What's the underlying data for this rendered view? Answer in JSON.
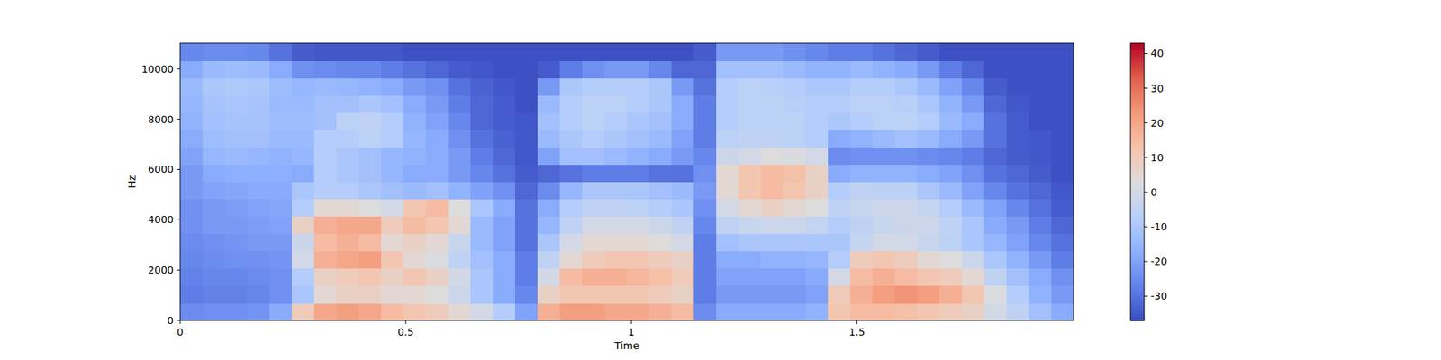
{
  "chart_data": {
    "type": "heatmap",
    "x_label": "Time",
    "y_label": "Hz",
    "xlim": [
      0,
      1.98
    ],
    "ylim": [
      0,
      11025
    ],
    "xticks": [
      0,
      0.5,
      1,
      1.5
    ],
    "yticks": [
      0,
      2000,
      4000,
      6000,
      8000,
      10000
    ],
    "values": [
      [
        -25,
        -28,
        -27,
        -26,
        -25,
        -24,
        -24,
        -22,
        -22,
        -20,
        -18,
        -16,
        -15,
        -14,
        -18,
        -26
      ],
      [
        -24,
        -27,
        -26,
        -25,
        -24,
        -22,
        -22,
        -20,
        -18,
        -15,
        -13,
        -12,
        -11,
        -10,
        -14,
        -25
      ],
      [
        -24,
        -27,
        -26,
        -24,
        -23,
        -22,
        -21,
        -19,
        -17,
        -14,
        -12,
        -11,
        -10,
        -9,
        -13,
        -25
      ],
      [
        -23,
        -26,
        -25,
        -24,
        -22,
        -21,
        -20,
        -18,
        -17,
        -15,
        -12,
        -11,
        -11,
        -10,
        -14,
        -26
      ],
      [
        -18,
        -24,
        -24,
        -23,
        -22,
        -20,
        -19,
        -18,
        -17,
        -16,
        -14,
        -13,
        -14,
        -13,
        -18,
        -30
      ],
      [
        10,
        -10,
        -8,
        0,
        -2,
        8,
        -8,
        -10,
        -18,
        -15,
        -14,
        -13,
        -14,
        -15,
        -24,
        -34
      ],
      [
        20,
        5,
        8,
        18,
        15,
        18,
        5,
        -8,
        -8,
        -8,
        -8,
        -12,
        -12,
        -14,
        -25,
        -35
      ],
      [
        22,
        8,
        10,
        20,
        18,
        20,
        5,
        -8,
        -10,
        -10,
        -8,
        -6,
        -12,
        -15,
        -26,
        -35
      ],
      [
        20,
        8,
        12,
        22,
        15,
        20,
        3,
        -10,
        -12,
        -12,
        -6,
        -5,
        -10,
        -16,
        -26,
        -35
      ],
      [
        15,
        5,
        8,
        12,
        5,
        10,
        0,
        -12,
        -15,
        -15,
        -8,
        -8,
        -12,
        -18,
        -28,
        -35
      ],
      [
        12,
        5,
        12,
        5,
        8,
        15,
        12,
        -14,
        -18,
        -16,
        -15,
        -16,
        -18,
        -22,
        -30,
        -36
      ],
      [
        10,
        3,
        8,
        2,
        5,
        12,
        15,
        -12,
        -18,
        -18,
        -18,
        -20,
        -22,
        -24,
        -32,
        -36
      ],
      [
        5,
        -2,
        0,
        -5,
        -3,
        5,
        3,
        -16,
        -22,
        -22,
        -24,
        -26,
        -28,
        -30,
        -34,
        -36
      ],
      [
        0,
        -10,
        -10,
        -12,
        -14,
        -14,
        -10,
        -20,
        -26,
        -28,
        -30,
        -32,
        -32,
        -33,
        -35,
        -36
      ],
      [
        -8,
        -18,
        -18,
        -18,
        -20,
        -20,
        -18,
        -24,
        -30,
        -32,
        -33,
        -34,
        -34,
        -35,
        -36,
        -36
      ],
      [
        -20,
        -26,
        -28,
        -28,
        -30,
        -30,
        -30,
        -32,
        -34,
        -35,
        -35,
        -35,
        -36,
        -36,
        -36,
        -36
      ],
      [
        18,
        8,
        0,
        -5,
        -10,
        -15,
        -18,
        -25,
        -32,
        -20,
        -14,
        -12,
        -14,
        -22,
        -34,
        -36
      ],
      [
        22,
        12,
        15,
        5,
        0,
        -5,
        -8,
        -15,
        -30,
        -12,
        -10,
        -8,
        -8,
        -10,
        -28,
        -36
      ],
      [
        22,
        12,
        18,
        10,
        5,
        0,
        -5,
        -10,
        -28,
        -12,
        -8,
        -6,
        -6,
        -8,
        -24,
        -36
      ],
      [
        20,
        12,
        18,
        12,
        5,
        0,
        -5,
        -10,
        -28,
        -14,
        -10,
        -8,
        -6,
        -8,
        -22,
        -36
      ],
      [
        20,
        12,
        16,
        12,
        5,
        0,
        -6,
        -10,
        -28,
        -16,
        -12,
        -10,
        -8,
        -8,
        -22,
        -36
      ],
      [
        18,
        10,
        14,
        10,
        3,
        -2,
        -8,
        -12,
        -30,
        -18,
        -14,
        -12,
        -10,
        -10,
        -26,
        -36
      ],
      [
        15,
        8,
        10,
        8,
        0,
        -5,
        -10,
        -14,
        -30,
        -22,
        -20,
        -18,
        -18,
        -22,
        -32,
        -36
      ],
      [
        -25,
        -28,
        -28,
        -28,
        -28,
        -26,
        -24,
        -22,
        -24,
        -26,
        -28,
        -28,
        -28,
        -30,
        -32,
        -34
      ],
      [
        -18,
        -22,
        -20,
        -18,
        -12,
        -5,
        0,
        5,
        5,
        -2,
        -6,
        -8,
        -8,
        -8,
        -12,
        -22
      ],
      [
        -18,
        -22,
        -20,
        -18,
        -10,
        -3,
        5,
        12,
        12,
        0,
        -5,
        -6,
        -6,
        -6,
        -12,
        -22
      ],
      [
        -18,
        -22,
        -20,
        -16,
        -10,
        -2,
        8,
        15,
        15,
        3,
        -5,
        -6,
        -6,
        -7,
        -12,
        -22
      ],
      [
        -18,
        -22,
        -20,
        -16,
        -10,
        -2,
        5,
        12,
        14,
        2,
        -6,
        -6,
        -7,
        -8,
        -14,
        -24
      ],
      [
        -16,
        -20,
        -18,
        -15,
        -10,
        -4,
        3,
        8,
        8,
        0,
        -8,
        -8,
        -8,
        -10,
        -16,
        -26
      ],
      [
        12,
        10,
        0,
        -8,
        -10,
        -8,
        -5,
        -8,
        -18,
        -25,
        -18,
        -10,
        -8,
        -10,
        -16,
        -28
      ],
      [
        15,
        18,
        15,
        10,
        -4,
        -5,
        -3,
        -5,
        -16,
        -24,
        -16,
        -8,
        -6,
        -8,
        -14,
        -28
      ],
      [
        15,
        22,
        18,
        12,
        0,
        -3,
        -2,
        -6,
        -16,
        -24,
        -14,
        -6,
        -6,
        -8,
        -16,
        -30
      ],
      [
        14,
        24,
        15,
        10,
        0,
        -2,
        -2,
        -6,
        -16,
        -24,
        -12,
        -6,
        -7,
        -10,
        -18,
        -32
      ],
      [
        12,
        22,
        12,
        5,
        -3,
        -2,
        -4,
        -10,
        -18,
        -25,
        -14,
        -8,
        -10,
        -14,
        -22,
        -34
      ],
      [
        10,
        18,
        10,
        3,
        -6,
        -5,
        -8,
        -14,
        -20,
        -26,
        -18,
        -14,
        -16,
        -20,
        -28,
        -36
      ],
      [
        8,
        12,
        5,
        -2,
        -10,
        -10,
        -14,
        -20,
        -24,
        -28,
        -22,
        -18,
        -22,
        -26,
        -32,
        -36
      ],
      [
        0,
        2,
        -5,
        -10,
        -15,
        -18,
        -20,
        -26,
        -30,
        -32,
        -30,
        -30,
        -32,
        -34,
        -36,
        -36
      ],
      [
        -5,
        -8,
        -12,
        -16,
        -20,
        -22,
        -26,
        -30,
        -32,
        -34,
        -34,
        -34,
        -35,
        -36,
        -36,
        -36
      ],
      [
        -12,
        -16,
        -18,
        -22,
        -26,
        -28,
        -30,
        -32,
        -34,
        -35,
        -35,
        -36,
        -36,
        -36,
        -36,
        -36
      ],
      [
        -18,
        -22,
        -24,
        -28,
        -30,
        -32,
        -34,
        -35,
        -36,
        -36,
        -36,
        -36,
        -36,
        -36,
        -36,
        -36
      ]
    ],
    "colorbar": {
      "range": [
        -37,
        43
      ],
      "ticks": [
        -30,
        -20,
        -10,
        0,
        10,
        20,
        30,
        40
      ]
    }
  }
}
